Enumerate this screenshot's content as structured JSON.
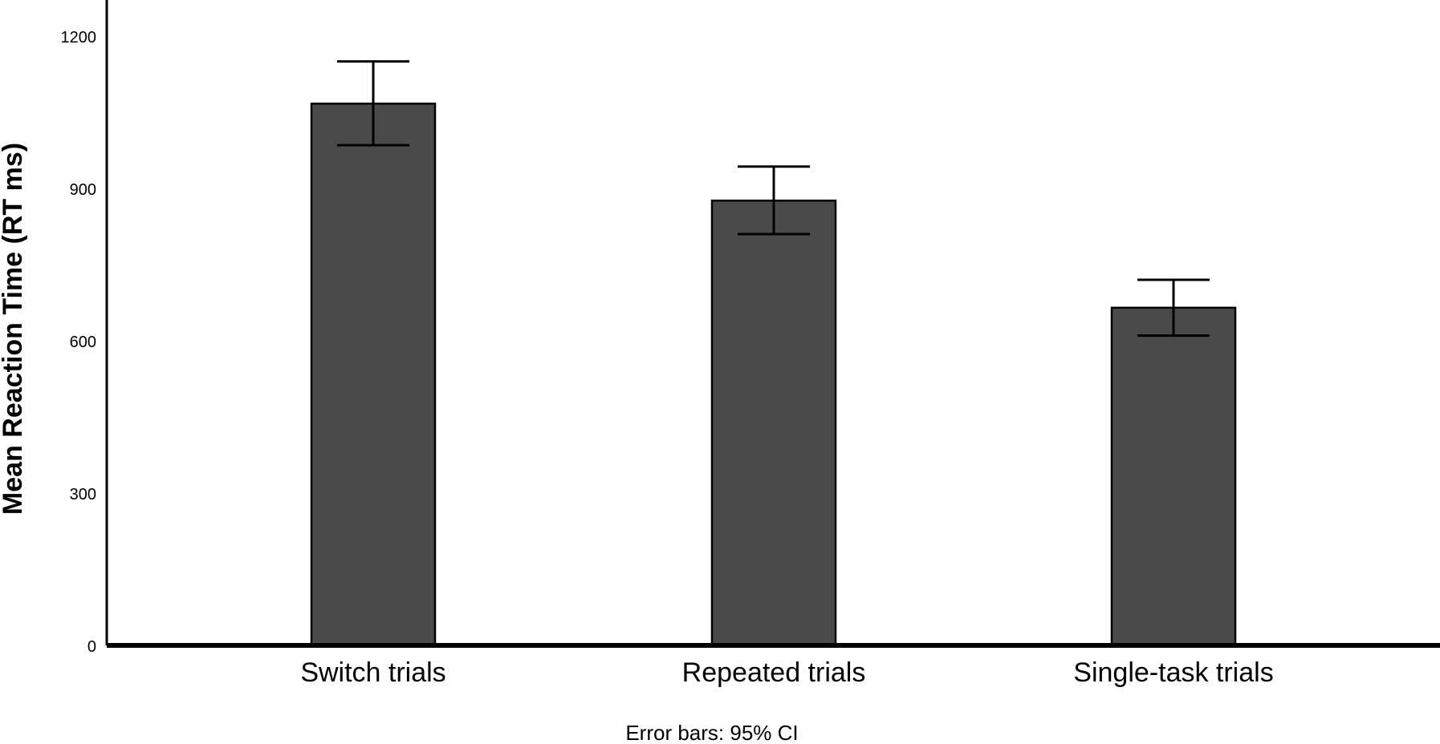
{
  "chart_data": {
    "type": "bar",
    "categories": [
      "Switch trials",
      "Repeated trials",
      "Single-task trials"
    ],
    "values": [
      1067,
      876,
      665
    ],
    "error_bars": {
      "label": "Error bars: 95% CI",
      "lower": [
        985,
        810,
        610
      ],
      "upper": [
        1150,
        943,
        720
      ]
    },
    "ylabel": "Mean Reaction Time (RT ms)",
    "xlabel": "",
    "ylim": [
      0,
      1200
    ],
    "yticks": [
      0,
      300,
      600,
      900,
      1200
    ],
    "bar_color": "#4a4a4a",
    "grid": false
  }
}
